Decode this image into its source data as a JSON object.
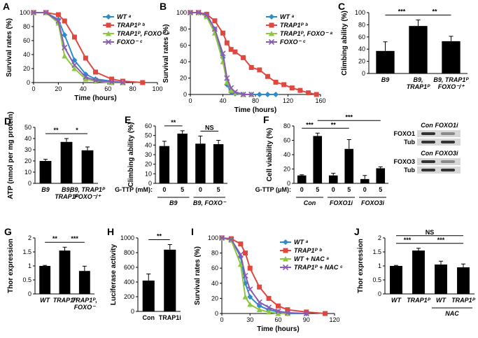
{
  "chart_data": [
    {
      "panel": "A",
      "type": "line",
      "ylabel": "Survival rates (%)",
      "xlabel": "Time (hours)",
      "x": [
        0,
        10,
        20,
        25,
        33,
        42,
        50,
        63,
        72,
        88
      ],
      "xlim": [
        0,
        100
      ],
      "xticks": [
        0,
        20,
        40,
        60,
        80,
        100
      ],
      "ylim": [
        0,
        100
      ],
      "yticks": [
        0,
        20,
        40,
        60,
        80,
        100
      ],
      "legend": "upper right",
      "series": [
        {
          "name": "WT ᵃ",
          "color": "#2e8bc9",
          "marker": "diamond",
          "values": [
            100,
            100,
            90,
            68,
            32,
            12,
            5,
            2,
            0,
            null
          ]
        },
        {
          "name": "TRAP1ᴾ ᵇ",
          "color": "#e0483f",
          "marker": "square",
          "values": [
            100,
            100,
            97,
            88,
            65,
            35,
            15,
            5,
            2,
            0
          ]
        },
        {
          "name": "TRAP1ᴾ, FOXO⁻ ᶜ",
          "color": "#8dc63f",
          "marker": "triangle",
          "values": [
            100,
            100,
            85,
            38,
            20,
            5,
            2,
            0,
            0,
            null
          ]
        },
        {
          "name": "FOXO⁻ ᶜ",
          "color": "#8a5ab5",
          "marker": "cross",
          "values": [
            100,
            100,
            88,
            50,
            25,
            8,
            3,
            1,
            0,
            null
          ]
        }
      ]
    },
    {
      "panel": "B",
      "type": "line",
      "ylabel": "Survival rates (%)",
      "xlabel": "Time (hours)",
      "x": [
        0,
        10,
        20,
        30,
        40,
        45,
        50,
        55,
        65,
        75,
        85,
        95,
        105,
        115,
        125,
        135,
        145,
        155
      ],
      "xlim": [
        0,
        160
      ],
      "xticks": [
        0,
        40,
        80,
        120,
        160
      ],
      "ylim": [
        0,
        100
      ],
      "yticks": [
        0,
        20,
        40,
        60,
        80,
        100
      ],
      "legend": "upper right",
      "series": [
        {
          "name": "WT ᵃ",
          "color": "#2e8bc9",
          "marker": "diamond",
          "values": [
            100,
            100,
            98,
            80,
            45,
            12,
            3,
            1,
            0,
            0,
            0,
            0,
            0,
            null,
            null,
            null,
            null,
            null
          ]
        },
        {
          "name": "TRAP1ᴾ ᵇ",
          "color": "#e0483f",
          "marker": "square",
          "values": [
            100,
            100,
            98,
            90,
            75,
            63,
            55,
            52,
            45,
            33,
            30,
            22,
            15,
            12,
            8,
            5,
            2,
            0
          ]
        },
        {
          "name": "TRAP1ᴾ, FOXO⁻ ᵃ",
          "color": "#8dc63f",
          "marker": "triangle",
          "values": [
            100,
            100,
            95,
            75,
            40,
            15,
            5,
            2,
            0,
            0,
            null,
            null,
            null,
            null,
            null,
            null,
            null,
            null
          ]
        },
        {
          "name": "FOXO⁻ ᶜ",
          "color": "#8a5ab5",
          "marker": "cross",
          "values": [
            100,
            100,
            97,
            80,
            50,
            20,
            8,
            3,
            0,
            0,
            null,
            null,
            null,
            null,
            null,
            null,
            null,
            null
          ]
        }
      ]
    },
    {
      "panel": "C",
      "type": "bar",
      "ylabel": "Climbing ability (%)",
      "color": "#000000",
      "categories": [
        "B9",
        "B9,\nTRAP1ᴾ",
        "B9, TRAP1ᴾ\nFOXO⁻/⁺"
      ],
      "values": [
        37,
        78,
        53
      ],
      "errors": [
        15,
        10,
        8
      ],
      "ylim": [
        0,
        100
      ],
      "yticks": [
        0,
        20,
        40,
        60,
        80,
        100
      ],
      "significance": [
        {
          "from": 0,
          "to": 1,
          "label": "***"
        },
        {
          "from": 1,
          "to": 2,
          "label": "**"
        }
      ]
    },
    {
      "panel": "D",
      "type": "bar",
      "ylabel": "ATP (nmol per mg protein)",
      "color": "#000000",
      "categories": [
        "B9",
        "B9,\nTRAP1ᴾ",
        "B9, TRAP1ᴾ\nFOXO⁻/⁺"
      ],
      "values": [
        20,
        37,
        29.5
      ],
      "errors": [
        1.5,
        3,
        3
      ],
      "ylim": [
        0,
        50
      ],
      "yticks": [
        0,
        10,
        20,
        30,
        40,
        50
      ],
      "significance": [
        {
          "from": 0,
          "to": 1,
          "label": "**"
        },
        {
          "from": 1,
          "to": 2,
          "label": "*"
        }
      ]
    },
    {
      "panel": "E",
      "type": "bar",
      "ylabel": "Climbing ability (%)",
      "color": "#000000",
      "dose_label": "G-TTP (mM):",
      "categories": [
        "0",
        "5",
        "0",
        "5"
      ],
      "values": [
        39,
        52,
        41.5,
        41
      ],
      "errors": [
        5,
        3,
        8,
        4
      ],
      "ylim": [
        0,
        60
      ],
      "yticks": [
        0,
        10,
        20,
        30,
        40,
        50,
        60
      ],
      "groups": [
        {
          "from": 0,
          "to": 1,
          "label": "B9"
        },
        {
          "from": 2,
          "to": 3,
          "label": "B9, FOXO⁻"
        }
      ],
      "significance": [
        {
          "from": 0,
          "to": 1,
          "label": "**"
        },
        {
          "from": 2,
          "to": 3,
          "label": "NS"
        }
      ]
    },
    {
      "panel": "F",
      "type": "bar",
      "ylabel": "Cell viability (%)",
      "color": "#000000",
      "dose_label": "G-TTP (μM):",
      "categories": [
        "0",
        "5",
        "0",
        "5",
        "0",
        "5"
      ],
      "values": [
        11,
        66,
        11,
        48,
        6,
        21
      ],
      "errors": [
        1,
        4,
        3,
        13,
        5,
        2
      ],
      "ylim": [
        0,
        80
      ],
      "yticks": [
        0,
        20,
        40,
        60,
        80
      ],
      "groups": [
        {
          "from": 0,
          "to": 1,
          "label": "Con"
        },
        {
          "from": 2,
          "to": 3,
          "label": "FOXO1i"
        },
        {
          "from": 4,
          "to": 5,
          "label": "FOXO3i"
        }
      ],
      "significance": [
        {
          "from": 0,
          "to": 1,
          "label": "***"
        },
        {
          "from": 1,
          "to": 3,
          "label": "**"
        },
        {
          "from": 1,
          "to": 5,
          "label": "***"
        }
      ],
      "insets": [
        {
          "header": [
            "Con",
            "FOXO1i"
          ],
          "rows": [
            "FOXO1",
            "Tub"
          ]
        },
        {
          "header": [
            "Con",
            "FOXO3i"
          ],
          "rows": [
            "FOXO3",
            "Tub"
          ]
        }
      ]
    },
    {
      "panel": "G",
      "type": "bar",
      "ylabel": "Thor expression",
      "color": "#000000",
      "categories": [
        "WT",
        "TRAP1ᴾ",
        "TRAP1ᴾ,\nFOXO⁻"
      ],
      "values": [
        1,
        1.55,
        0.82
      ],
      "errors": [
        0.02,
        0.12,
        0.17
      ],
      "ylim": [
        0,
        2
      ],
      "yticks": [
        0,
        0.5,
        1,
        1.5,
        2
      ],
      "significance": [
        {
          "from": 0,
          "to": 1,
          "label": "**"
        },
        {
          "from": 1,
          "to": 2,
          "label": "***"
        }
      ]
    },
    {
      "panel": "H",
      "type": "bar",
      "ylabel": "Luciferase activity",
      "color": "#000000",
      "categories": [
        "Con",
        "TRAP1i"
      ],
      "values": [
        420,
        840
      ],
      "errors": [
        90,
        70
      ],
      "ylim": [
        0,
        1000
      ],
      "yticks": [
        0,
        200,
        400,
        600,
        800,
        1000
      ],
      "significance": [
        {
          "from": 0,
          "to": 1,
          "label": "**"
        }
      ]
    },
    {
      "panel": "I",
      "type": "line",
      "ylabel": "Survival rates (%)",
      "xlabel": "Time (hours)",
      "x": [
        0,
        10,
        20,
        25,
        30,
        40,
        50,
        60,
        70,
        90,
        110
      ],
      "xlim": [
        0,
        120
      ],
      "xticks": [
        0,
        30,
        60,
        90,
        120
      ],
      "ylim": [
        0,
        100
      ],
      "yticks": [
        0,
        20,
        40,
        60,
        80,
        100
      ],
      "legend": "upper right",
      "series": [
        {
          "name": "WT ᵃ",
          "color": "#2e8bc9",
          "marker": "diamond",
          "values": [
            100,
            98,
            75,
            40,
            22,
            10,
            5,
            2,
            0,
            0,
            null
          ]
        },
        {
          "name": "TRAP1ᴾ ᵇ",
          "color": "#e0483f",
          "marker": "square",
          "values": [
            100,
            99,
            92,
            80,
            60,
            35,
            20,
            10,
            5,
            2,
            0
          ]
        },
        {
          "name": "WT + NAC ᵃ",
          "color": "#8dc63f",
          "marker": "triangle",
          "values": [
            100,
            97,
            65,
            22,
            12,
            5,
            2,
            0,
            0,
            null,
            null
          ]
        },
        {
          "name": "TRAP1ᴾ + NAC ᶜ",
          "color": "#8a5ab5",
          "marker": "cross",
          "values": [
            100,
            98,
            78,
            50,
            32,
            15,
            8,
            3,
            1,
            0,
            null
          ]
        }
      ]
    },
    {
      "panel": "J",
      "type": "bar",
      "ylabel": "Thor expression",
      "color": "#000000",
      "categories": [
        "WT",
        "TRAP1ᴾ",
        "WT",
        "TRAP1ᴾ"
      ],
      "values": [
        1,
        1.55,
        1.05,
        0.95
      ],
      "errors": [
        0.02,
        0.08,
        0.12,
        0.12
      ],
      "ylim": [
        0,
        2
      ],
      "yticks": [
        0,
        0.5,
        1,
        1.5,
        2
      ],
      "groups": [
        {
          "from": 2,
          "to": 3,
          "label": "NAC"
        }
      ],
      "significance": [
        {
          "from": 0,
          "to": 1,
          "label": "***"
        },
        {
          "from": 1,
          "to": 3,
          "label": "***"
        },
        {
          "from": 0,
          "to": 3,
          "label": "NS"
        }
      ]
    }
  ]
}
